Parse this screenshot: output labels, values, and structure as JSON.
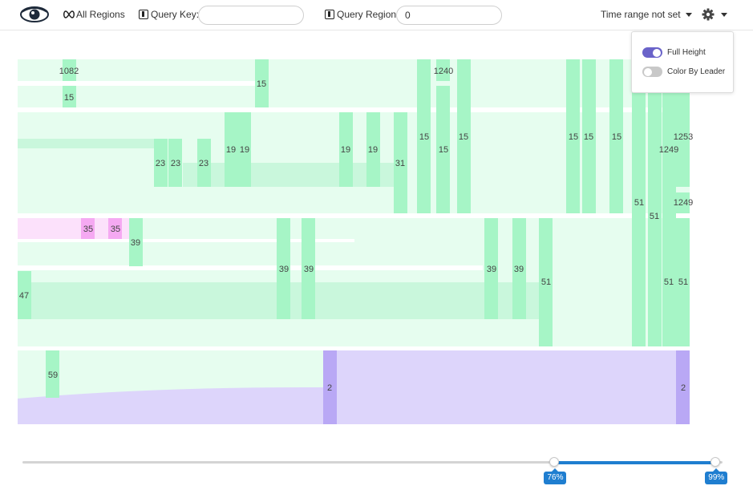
{
  "header": {
    "all_regions_label": "All Regions",
    "query_key_label": "Query Key:",
    "query_key_value": "",
    "query_region_label": "Query Region:",
    "query_region_value": "0",
    "time_range_label": "Time range not set"
  },
  "settings_menu": {
    "full_height_label": "Full Height",
    "full_height_on": true,
    "color_by_leader_label": "Color By Leader",
    "color_by_leader_on": false
  },
  "colors": {
    "green_node": "#9ef5c2",
    "green_flow": "#dcfce9",
    "pink_node": "#f5a9f2",
    "pink_flow": "#fce1fb",
    "purple_node": "#b9a8f5",
    "purple_flow": "#ddd5fb",
    "accent": "#1f7ed0"
  },
  "node_labels": {
    "n1082": "1082",
    "n15a": "15",
    "n15b": "15",
    "n1240": "1240",
    "n23a": "23",
    "n23b": "23",
    "n23c": "23",
    "n19a": "19",
    "n19b": "19",
    "n19c": "19",
    "n19d": "19",
    "n31": "31",
    "n15c": "15",
    "n15d": "15",
    "n15e": "15",
    "n15f": "15",
    "n15g": "15",
    "n15h": "15",
    "n1253": "1253",
    "n1249a": "1249",
    "n1249b": "1249",
    "n51a": "51",
    "n51b": "51",
    "n35a": "35",
    "n35b": "35",
    "n39a": "39",
    "n39b": "39",
    "n39c": "39",
    "n39d": "39",
    "n39e": "39",
    "n47": "47",
    "n51c": "51",
    "n51d": "51",
    "n51e": "51",
    "n59": "59",
    "n2a": "2",
    "n2b": "2"
  },
  "time_slider": {
    "start_label": "76%",
    "end_label": "99%",
    "start_fraction": 0.76,
    "end_fraction": 0.99
  }
}
